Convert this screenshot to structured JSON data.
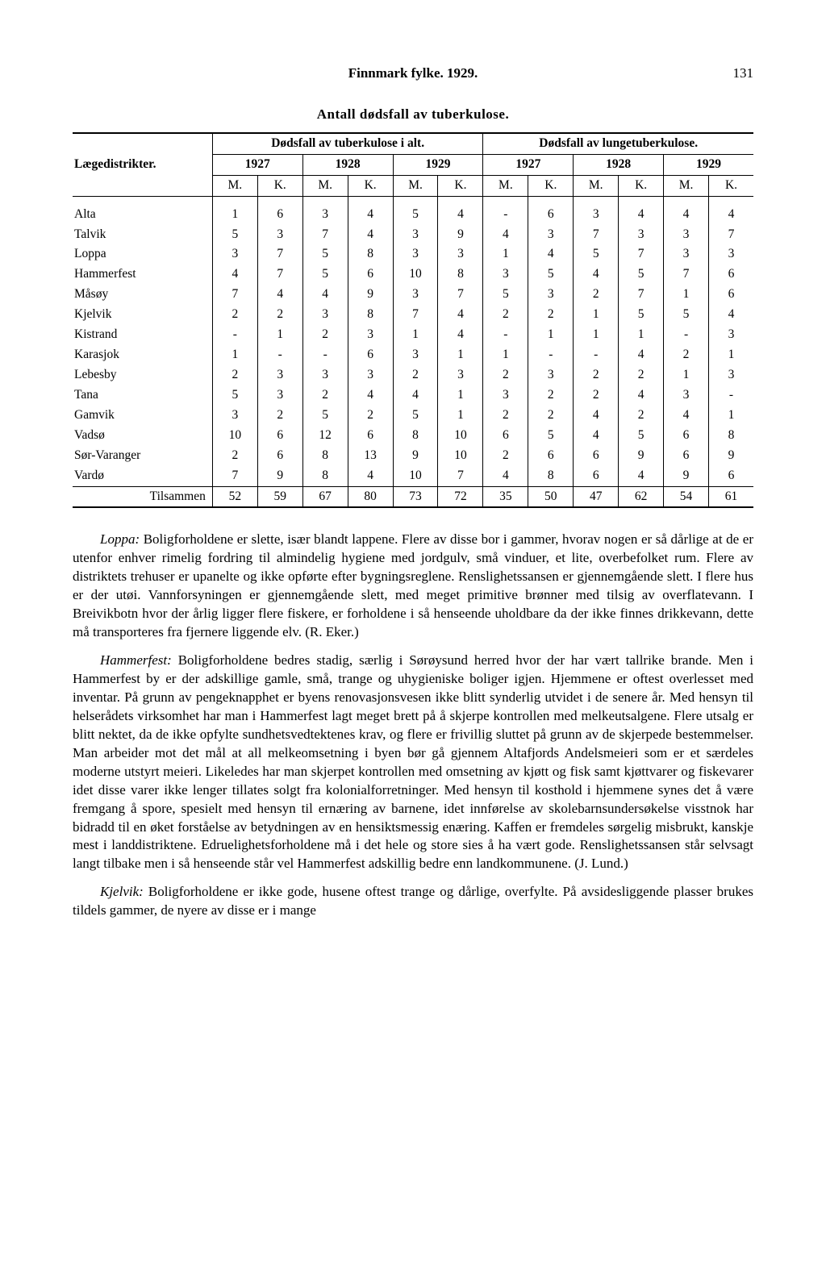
{
  "header": {
    "title": "Finnmark fylke. 1929.",
    "pagenum": "131"
  },
  "table": {
    "title": "Antall dødsfall av tuberkulose.",
    "groupA": "Dødsfall av tuberkulose i alt.",
    "groupB": "Dødsfall av lungetuberkulose.",
    "rowlabel": "Lægedistrikter.",
    "years": [
      "1927",
      "1928",
      "1929",
      "1927",
      "1928",
      "1929"
    ],
    "mk": [
      "M.",
      "K.",
      "M.",
      "K.",
      "M.",
      "K.",
      "M.",
      "K.",
      "M.",
      "K.",
      "M.",
      "K."
    ],
    "rows": [
      {
        "name": "Alta",
        "v": [
          "1",
          "6",
          "3",
          "4",
          "5",
          "4",
          "-",
          "6",
          "3",
          "4",
          "4",
          "4"
        ]
      },
      {
        "name": "Talvik",
        "v": [
          "5",
          "3",
          "7",
          "4",
          "3",
          "9",
          "4",
          "3",
          "7",
          "3",
          "3",
          "7"
        ]
      },
      {
        "name": "Loppa",
        "v": [
          "3",
          "7",
          "5",
          "8",
          "3",
          "3",
          "1",
          "4",
          "5",
          "7",
          "3",
          "3"
        ]
      },
      {
        "name": "Hammerfest",
        "v": [
          "4",
          "7",
          "5",
          "6",
          "10",
          "8",
          "3",
          "5",
          "4",
          "5",
          "7",
          "6"
        ]
      },
      {
        "name": "Måsøy",
        "v": [
          "7",
          "4",
          "4",
          "9",
          "3",
          "7",
          "5",
          "3",
          "2",
          "7",
          "1",
          "6"
        ]
      },
      {
        "name": "Kjelvik",
        "v": [
          "2",
          "2",
          "3",
          "8",
          "7",
          "4",
          "2",
          "2",
          "1",
          "5",
          "5",
          "4"
        ]
      },
      {
        "name": "Kistrand",
        "v": [
          "-",
          "1",
          "2",
          "3",
          "1",
          "4",
          "-",
          "1",
          "1",
          "1",
          "-",
          "3"
        ]
      },
      {
        "name": "Karasjok",
        "v": [
          "1",
          "-",
          "-",
          "6",
          "3",
          "1",
          "1",
          "-",
          "-",
          "4",
          "2",
          "1"
        ]
      },
      {
        "name": "Lebesby",
        "v": [
          "2",
          "3",
          "3",
          "3",
          "2",
          "3",
          "2",
          "3",
          "2",
          "2",
          "1",
          "3"
        ]
      },
      {
        "name": "Tana",
        "v": [
          "5",
          "3",
          "2",
          "4",
          "4",
          "1",
          "3",
          "2",
          "2",
          "4",
          "3",
          "-"
        ]
      },
      {
        "name": "Gamvik",
        "v": [
          "3",
          "2",
          "5",
          "2",
          "5",
          "1",
          "2",
          "2",
          "4",
          "2",
          "4",
          "1"
        ]
      },
      {
        "name": "Vadsø",
        "v": [
          "10",
          "6",
          "12",
          "6",
          "8",
          "10",
          "6",
          "5",
          "4",
          "5",
          "6",
          "8"
        ]
      },
      {
        "name": "Sør-Varanger",
        "v": [
          "2",
          "6",
          "8",
          "13",
          "9",
          "10",
          "2",
          "6",
          "6",
          "9",
          "6",
          "9"
        ]
      },
      {
        "name": "Vardø",
        "v": [
          "7",
          "9",
          "8",
          "4",
          "10",
          "7",
          "4",
          "8",
          "6",
          "4",
          "9",
          "6"
        ]
      }
    ],
    "sumlabel": "Tilsammen",
    "sum": [
      "52",
      "59",
      "67",
      "80",
      "73",
      "72",
      "35",
      "50",
      "47",
      "62",
      "54",
      "61"
    ]
  },
  "paragraphs": {
    "p1_lead": "Loppa:",
    "p1": " Boligforholdene er slette, især blandt lappene. Flere av disse bor i gammer, hvorav nogen er så dårlige at de er utenfor enhver rimelig fordring til almindelig hygiene med jordgulv, små vinduer, et lite, overbefolket rum. Flere av distriktets trehuser er upanelte og ikke opførte efter bygningsreglene. Renslighetssansen er gjennemgående slett. I flere hus er der utøi. Vannforsyningen er gjennemgående slett, med meget primitive brønner med tilsig av overflatevann. I Breivikbotn hvor der årlig ligger flere fiskere, er forholdene i så henseende uholdbare da der ikke finnes drikkevann, dette må transporteres fra fjernere liggende elv. (R. Eker.)",
    "p2_lead": "Hammerfest:",
    "p2": " Boligforholdene bedres stadig, særlig i Sørøysund herred hvor der har vært tallrike brande. Men i Hammerfest by er der adskillige gamle, små, trange og uhygieniske boliger igjen. Hjemmene er oftest overlesset med inventar. På grunn av pengeknapphet er byens renovasjonsvesen ikke blitt synderlig utvidet i de senere år. Med hensyn til helserådets virksomhet har man i Hammerfest lagt meget brett på å skjerpe kontrollen med melkeutsalgene. Flere utsalg er blitt nektet, da de ikke opfylte sundhetsvedtektenes krav, og flere er frivillig sluttet på grunn av de skjerpede bestemmelser. Man arbeider mot det mål at all melkeomsetning i byen bør gå gjennem Altafjords Andelsmeieri som er et særdeles moderne utstyrt meieri. Likeledes har man skjerpet kontrollen med omsetning av kjøtt og fisk samt kjøttvarer og fiskevarer idet disse varer ikke lenger tillates solgt fra kolonialforretninger. Med hensyn til kosthold i hjemmene synes det å være fremgang å spore, spesielt med hensyn til ernæring av barnene, idet innførelse av skolebarnsundersøkelse visstnok har bidradd til en øket forståelse av betydningen av en hensiktsmessig enæring. Kaffen er fremdeles sørgelig misbrukt, kanskje mest i landdistriktene. Edruelighetsforholdene må i det hele og store sies å ha vært gode. Renslighetssansen står selvsagt langt tilbake men i så henseende står vel Hammerfest adskillig bedre enn landkommunene. (J. Lund.)",
    "p3_lead": "Kjelvik:",
    "p3": " Boligforholdene er ikke gode, husene oftest trange og dårlige, overfylte. På avsidesliggende plasser brukes tildels gammer, de nyere av disse er i mange"
  }
}
